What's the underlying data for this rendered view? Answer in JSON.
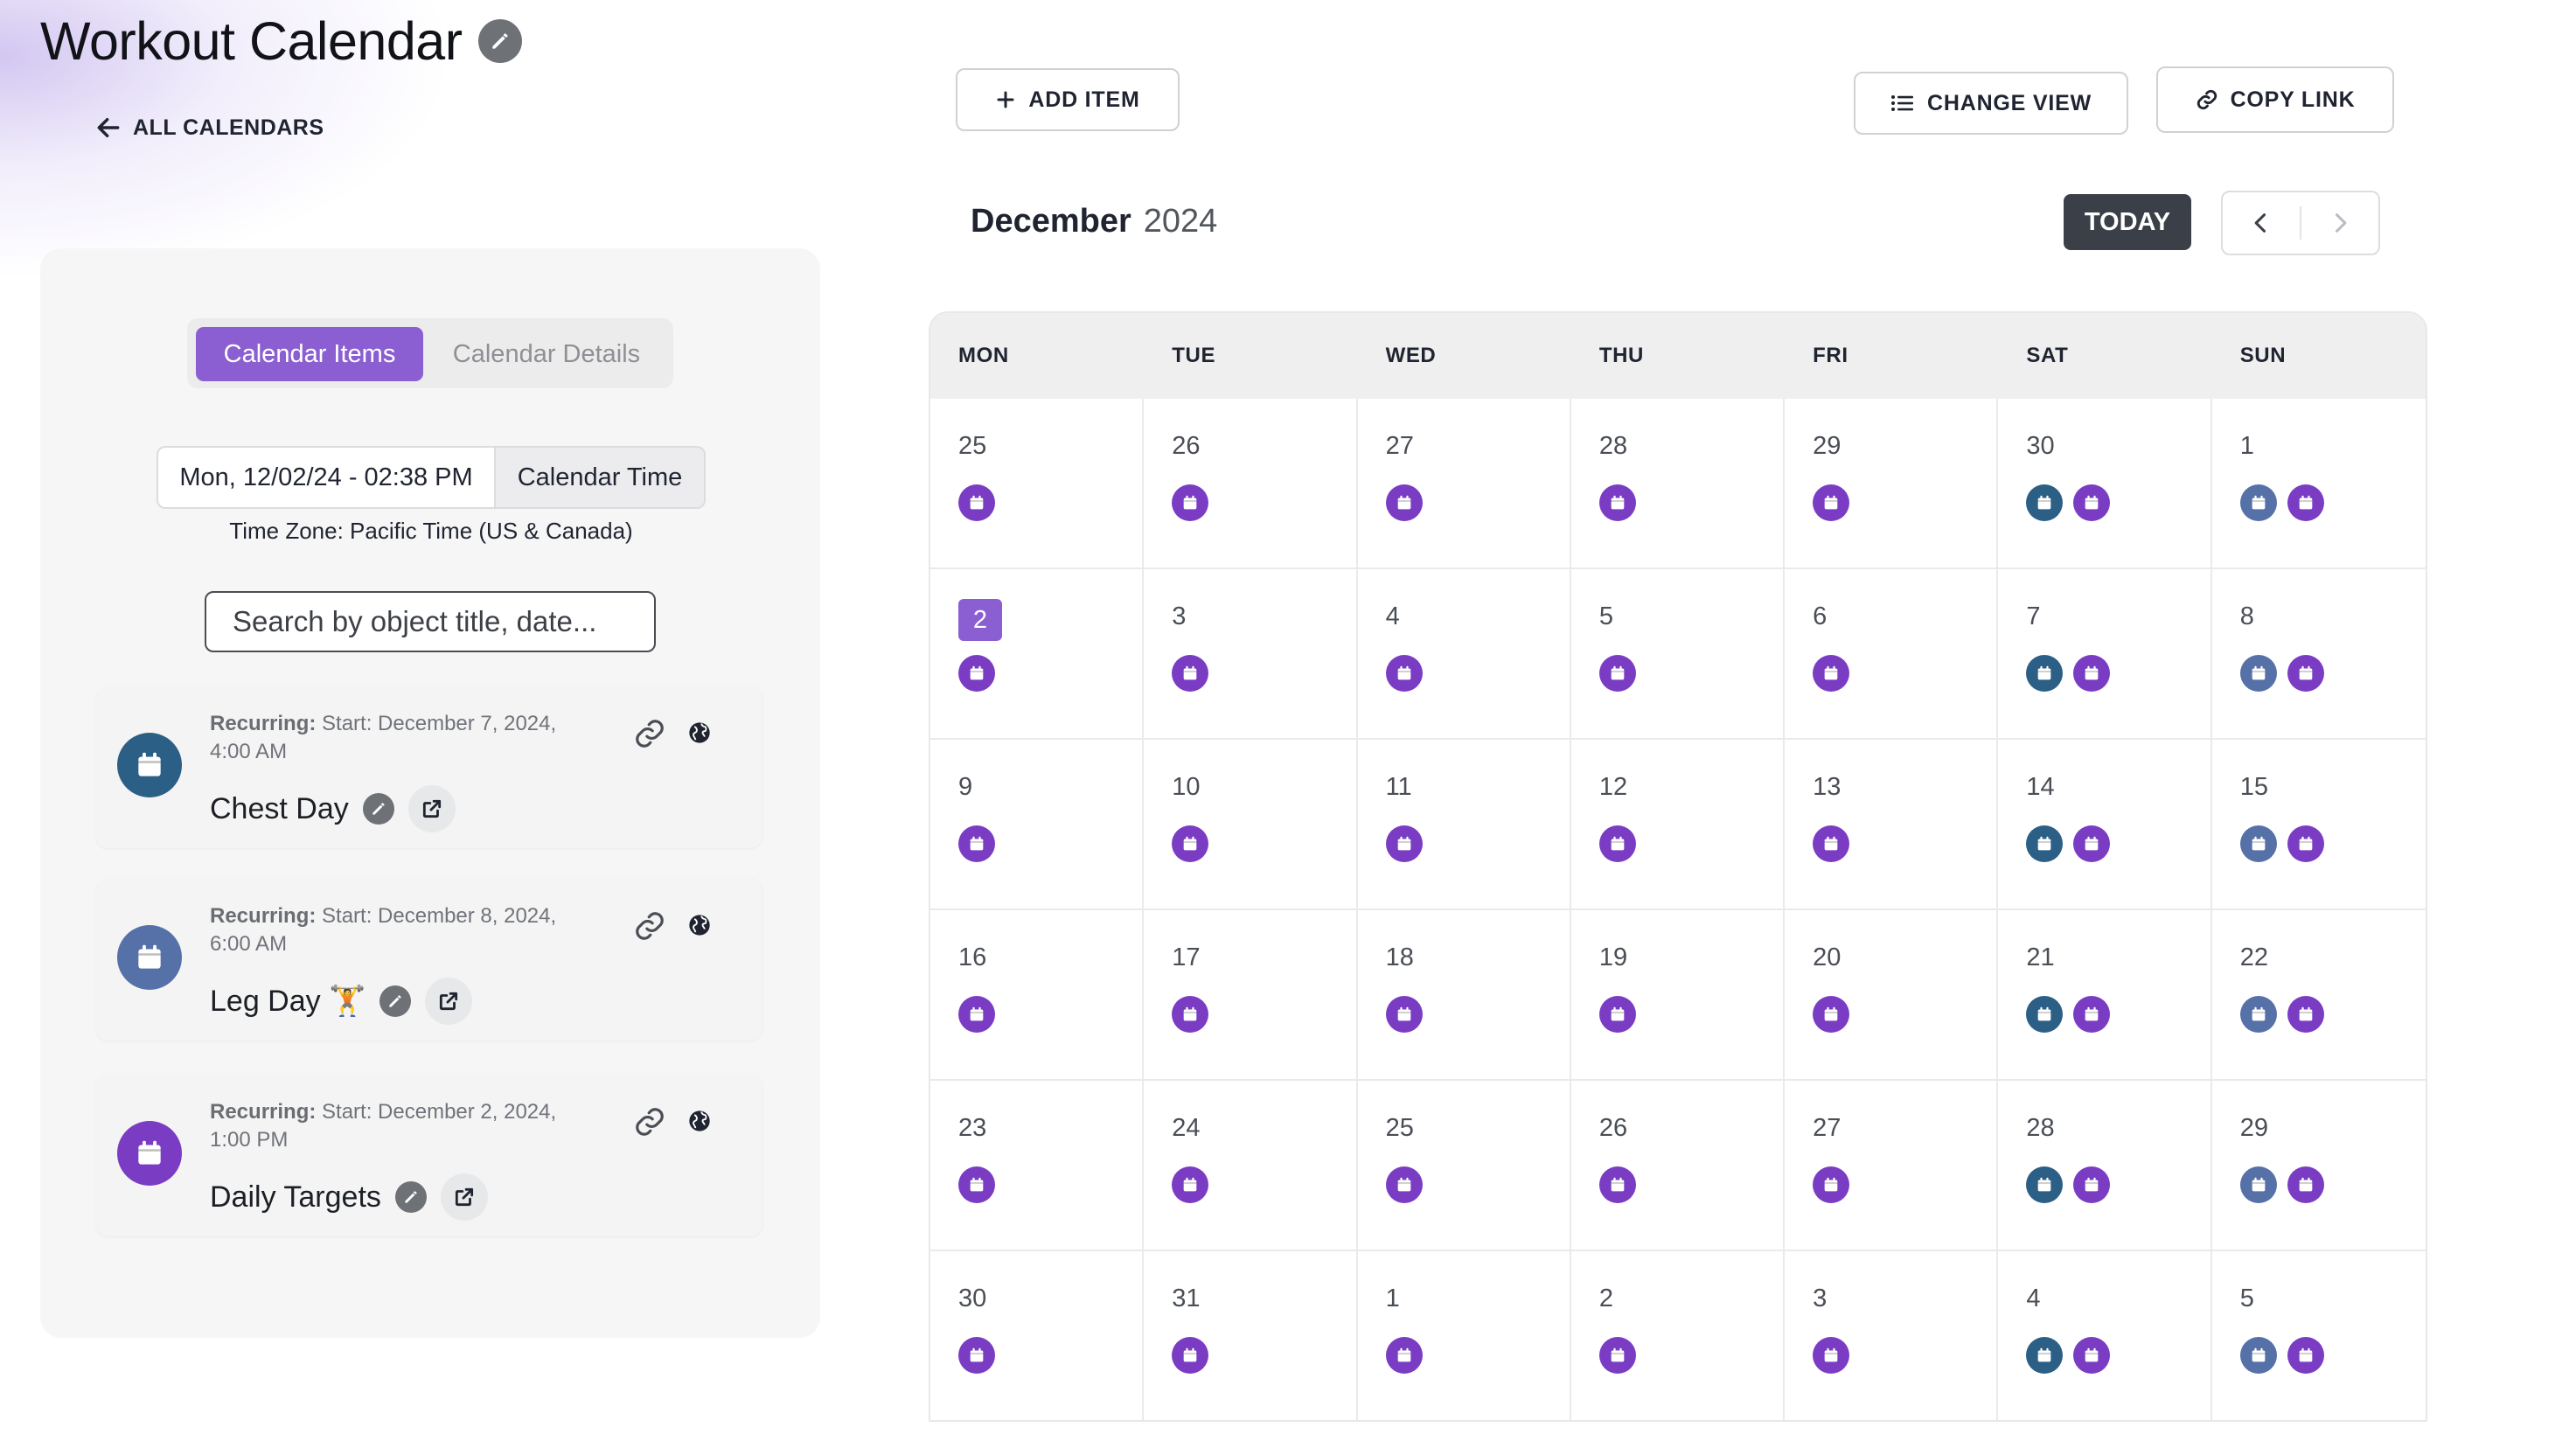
{
  "header": {
    "title": "Workout Calendar",
    "back_label": "ALL CALENDARS"
  },
  "sidebar": {
    "tabs": [
      {
        "label": "Calendar Items",
        "active": true
      },
      {
        "label": "Calendar Details",
        "active": false
      }
    ],
    "datetime": {
      "value": "Mon, 12/02/24 - 02:38 PM",
      "mode_label": "Calendar Time"
    },
    "timezone": "Time Zone: Pacific Time (US & Canada)",
    "search": {
      "placeholder": "Search by object title, date...",
      "value": ""
    },
    "items": [
      {
        "prefix": "Recurring:",
        "schedule": "Start: December 7, 2024, 4:00 AM",
        "name": "Chest Day",
        "color": "#2b5f86",
        "icon": "calendar-icon"
      },
      {
        "prefix": "Recurring:",
        "schedule": "Start: December 8, 2024, 6:00 AM",
        "name": "Leg Day 🏋️",
        "color": "#5670a8",
        "icon": "calendar-icon"
      },
      {
        "prefix": "Recurring:",
        "schedule": "Start: December 2, 2024, 1:00 PM",
        "name": "Daily Targets",
        "color": "#7b3cc4",
        "icon": "calendar-icon"
      }
    ]
  },
  "toolbar": {
    "add_label": "ADD ITEM",
    "view_label": "CHANGE VIEW",
    "copy_label": "COPY LINK",
    "today_label": "TODAY"
  },
  "calendar": {
    "month": "December",
    "year": "2024",
    "weekdays": [
      "MON",
      "TUE",
      "WED",
      "THU",
      "FRI",
      "SAT",
      "SUN"
    ],
    "today": 2,
    "event_colors": {
      "daily_targets": "#7b3cc4",
      "chest_day": "#2b5f86",
      "leg_day": "#5670a8"
    },
    "weeks": [
      [
        {
          "d": "25",
          "e": [
            "p"
          ]
        },
        {
          "d": "26",
          "e": [
            "p"
          ]
        },
        {
          "d": "27",
          "e": [
            "p"
          ]
        },
        {
          "d": "28",
          "e": [
            "p"
          ]
        },
        {
          "d": "29",
          "e": [
            "p"
          ]
        },
        {
          "d": "30",
          "e": [
            "t",
            "p"
          ]
        },
        {
          "d": "1",
          "e": [
            "s",
            "p"
          ]
        }
      ],
      [
        {
          "d": "2",
          "e": [
            "p"
          ],
          "today": true
        },
        {
          "d": "3",
          "e": [
            "p"
          ]
        },
        {
          "d": "4",
          "e": [
            "p"
          ]
        },
        {
          "d": "5",
          "e": [
            "p"
          ]
        },
        {
          "d": "6",
          "e": [
            "p"
          ]
        },
        {
          "d": "7",
          "e": [
            "t",
            "p"
          ]
        },
        {
          "d": "8",
          "e": [
            "s",
            "p"
          ]
        }
      ],
      [
        {
          "d": "9",
          "e": [
            "p"
          ]
        },
        {
          "d": "10",
          "e": [
            "p"
          ]
        },
        {
          "d": "11",
          "e": [
            "p"
          ]
        },
        {
          "d": "12",
          "e": [
            "p"
          ]
        },
        {
          "d": "13",
          "e": [
            "p"
          ]
        },
        {
          "d": "14",
          "e": [
            "t",
            "p"
          ]
        },
        {
          "d": "15",
          "e": [
            "s",
            "p"
          ]
        }
      ],
      [
        {
          "d": "16",
          "e": [
            "p"
          ]
        },
        {
          "d": "17",
          "e": [
            "p"
          ]
        },
        {
          "d": "18",
          "e": [
            "p"
          ]
        },
        {
          "d": "19",
          "e": [
            "p"
          ]
        },
        {
          "d": "20",
          "e": [
            "p"
          ]
        },
        {
          "d": "21",
          "e": [
            "t",
            "p"
          ]
        },
        {
          "d": "22",
          "e": [
            "s",
            "p"
          ]
        }
      ],
      [
        {
          "d": "23",
          "e": [
            "p"
          ]
        },
        {
          "d": "24",
          "e": [
            "p"
          ]
        },
        {
          "d": "25",
          "e": [
            "p"
          ]
        },
        {
          "d": "26",
          "e": [
            "p"
          ]
        },
        {
          "d": "27",
          "e": [
            "p"
          ]
        },
        {
          "d": "28",
          "e": [
            "t",
            "p"
          ]
        },
        {
          "d": "29",
          "e": [
            "s",
            "p"
          ]
        }
      ],
      [
        {
          "d": "30",
          "e": [
            "p"
          ]
        },
        {
          "d": "31",
          "e": [
            "p"
          ]
        },
        {
          "d": "1",
          "e": [
            "p"
          ]
        },
        {
          "d": "2",
          "e": [
            "p"
          ]
        },
        {
          "d": "3",
          "e": [
            "p"
          ]
        },
        {
          "d": "4",
          "e": [
            "t",
            "p"
          ]
        },
        {
          "d": "5",
          "e": [
            "s",
            "p"
          ]
        }
      ]
    ]
  }
}
